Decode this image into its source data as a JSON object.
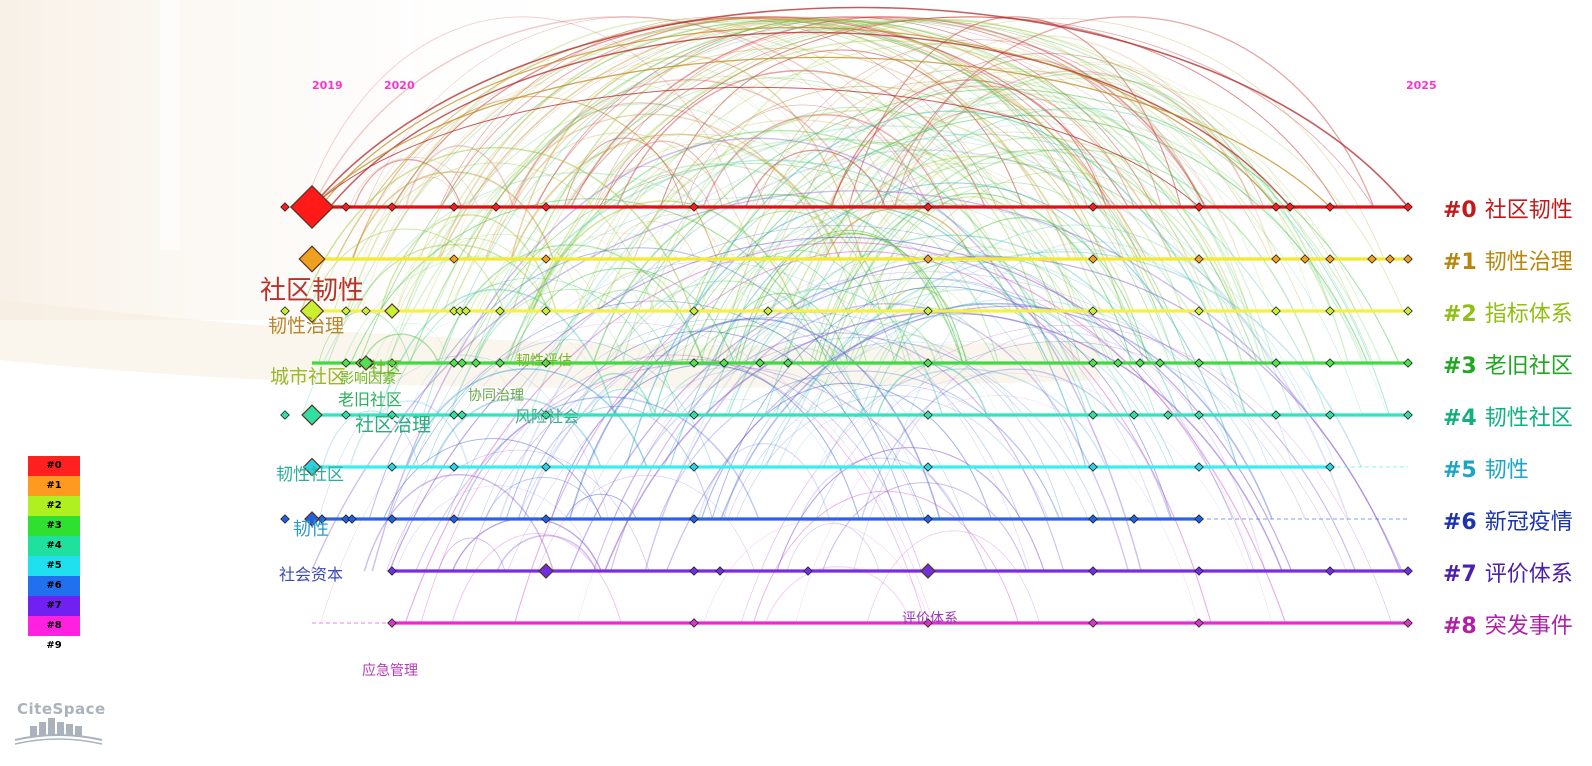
{
  "years": [
    {
      "label": "2019",
      "year": 2019
    },
    {
      "label": "2020",
      "year": 2020
    },
    {
      "label": "2025",
      "year": 2025
    }
  ],
  "clusters": [
    {
      "id": "#0",
      "label": "社区韧性",
      "color": "#e01010",
      "label_color": "#c21a1a"
    },
    {
      "id": "#1",
      "label": "韧性治理",
      "color": "#f2ea2a",
      "label_color": "#b8860b"
    },
    {
      "id": "#2",
      "label": "指标体系",
      "color": "#f6f23a",
      "label_color": "#8fbf10"
    },
    {
      "id": "#3",
      "label": "老旧社区",
      "color": "#3fdc3f",
      "label_color": "#21a821"
    },
    {
      "id": "#4",
      "label": "韧性社区",
      "color": "#2ee6bd",
      "label_color": "#12b07e"
    },
    {
      "id": "#5",
      "label": "韧性",
      "color": "#36f0f0",
      "label_color": "#1aa6c8"
    },
    {
      "id": "#6",
      "label": "新冠疫情",
      "color": "#2a63e6",
      "label_color": "#1a33b0"
    },
    {
      "id": "#7",
      "label": "评价体系",
      "color": "#7a2be6",
      "label_color": "#4b1fb0"
    },
    {
      "id": "#8",
      "label": "突发事件",
      "color": "#e62ad8",
      "label_color": "#b01fa8"
    }
  ],
  "keywords": [
    {
      "text": "社区韧性",
      "color": "#b8332a",
      "size": 26
    },
    {
      "text": "韧性治理",
      "color": "#b8862a",
      "size": 19
    },
    {
      "text": "城市社区",
      "color": "#9ab82a",
      "size": 19
    },
    {
      "text": "影响因素",
      "color": "#6fb82a",
      "size": 14
    },
    {
      "text": "社区",
      "color": "#6fb82a",
      "size": 16
    },
    {
      "text": "老旧社区",
      "color": "#2aae5a",
      "size": 16
    },
    {
      "text": "社区治理",
      "color": "#2aae7a",
      "size": 19
    },
    {
      "text": "韧性评估",
      "color": "#7ab82a",
      "size": 14
    },
    {
      "text": "协同治理",
      "color": "#6aa84a",
      "size": 14
    },
    {
      "text": "风险社会",
      "color": "#3aae8a",
      "size": 16
    },
    {
      "text": "韧性社区",
      "color": "#2aae9a",
      "size": 17
    },
    {
      "text": "韧性",
      "color": "#2a9acd",
      "size": 18
    },
    {
      "text": "社会资本",
      "color": "#3a4ab8",
      "size": 16
    },
    {
      "text": "评价体系",
      "color": "#9a3ab8",
      "size": 14
    },
    {
      "text": "应急管理",
      "color": "#b83ab8",
      "size": 14
    }
  ],
  "legend": [
    {
      "label": "#0",
      "color": "#ff2020"
    },
    {
      "label": "#1",
      "color": "#ff9a20"
    },
    {
      "label": "#2",
      "color": "#b0f020"
    },
    {
      "label": "#3",
      "color": "#30e030"
    },
    {
      "label": "#4",
      "color": "#20e0a0"
    },
    {
      "label": "#5",
      "color": "#20e0f0"
    },
    {
      "label": "#6",
      "color": "#2070f0"
    },
    {
      "label": "#7",
      "color": "#7020f0"
    },
    {
      "label": "#8",
      "color": "#ff20e0"
    },
    {
      "label": "#9",
      "color": "#ffffff"
    }
  ],
  "brand": "CiteSpace"
}
